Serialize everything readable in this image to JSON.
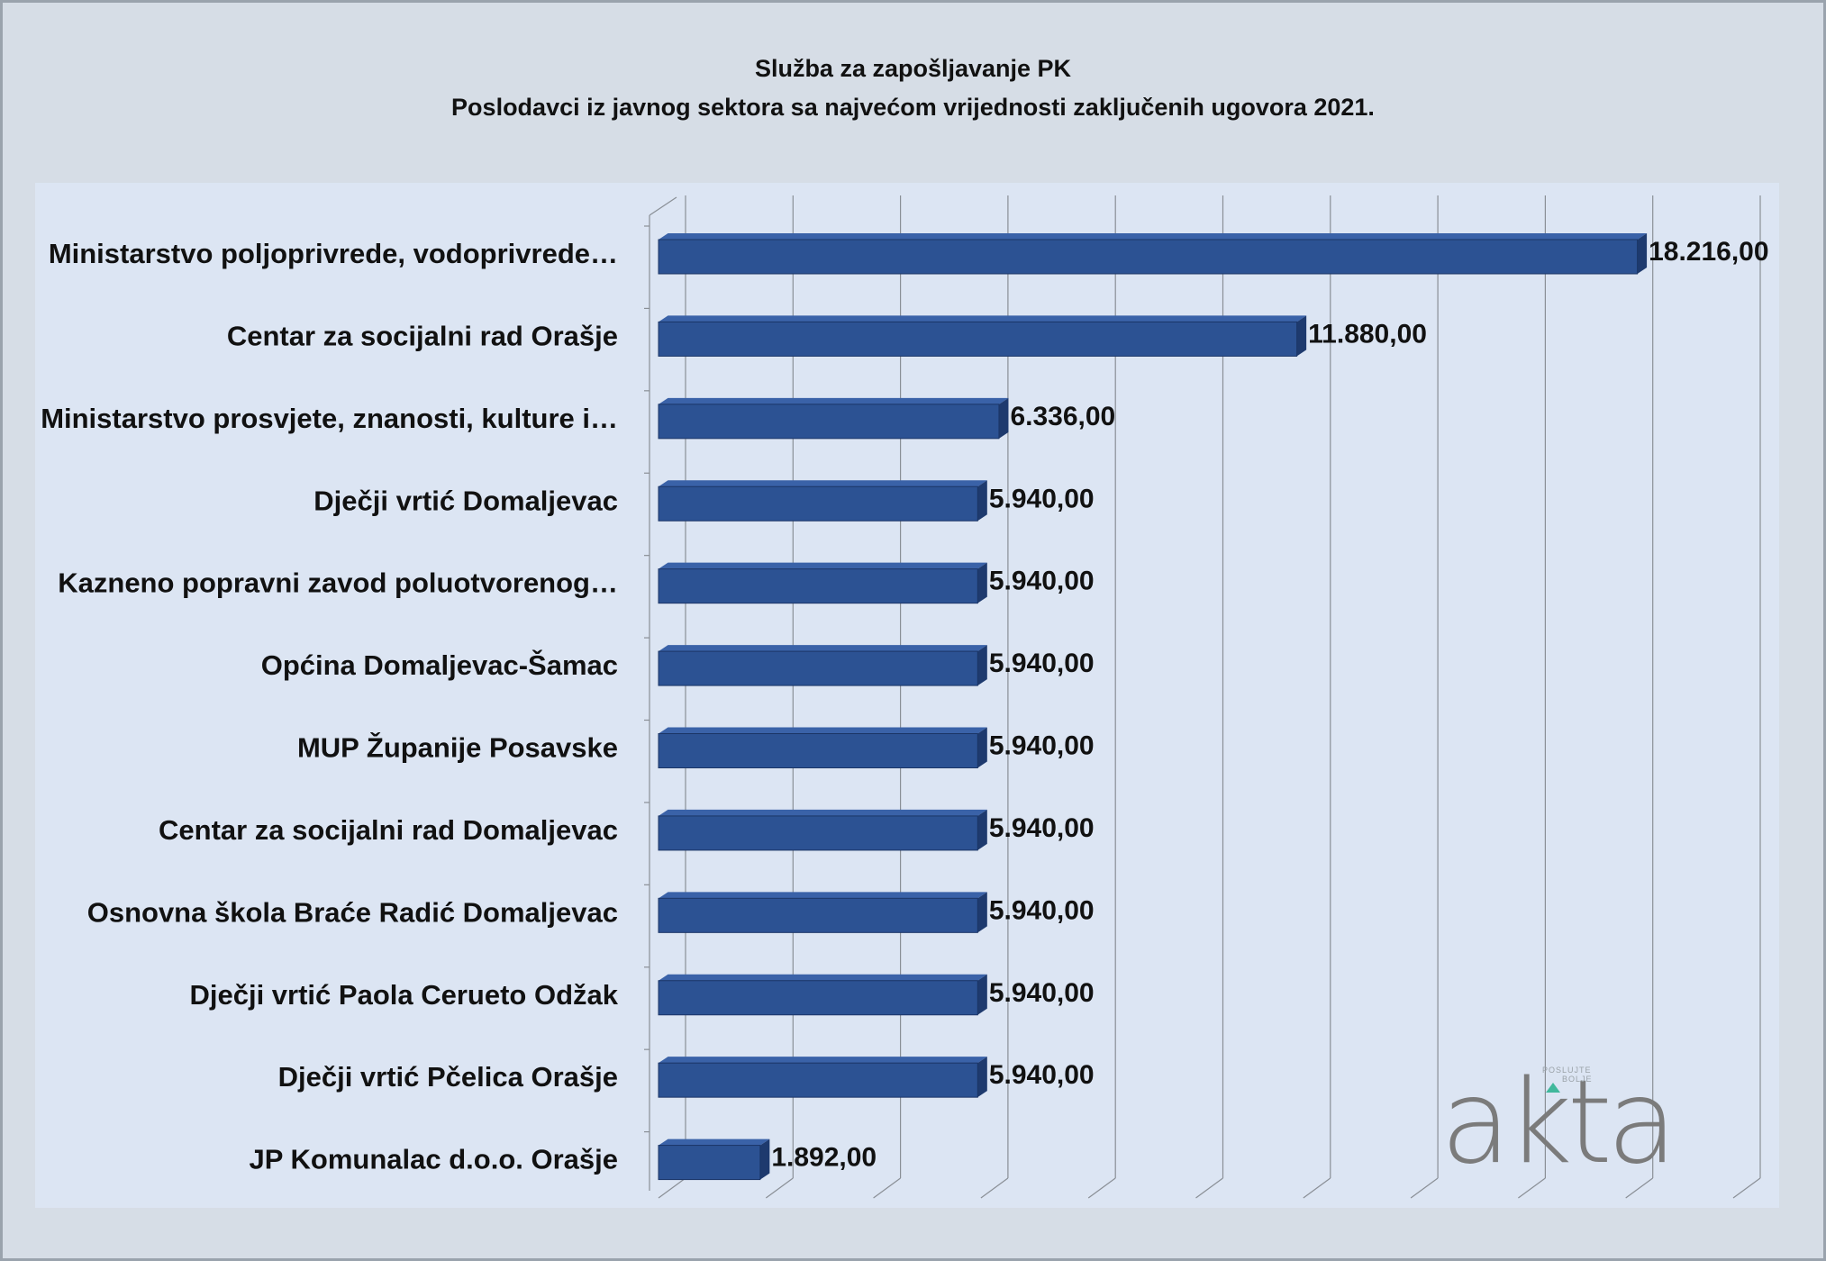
{
  "title_line1": "Služba za zapošljavanje PK",
  "title_line2": "Poslodavci iz javnog sektora sa najvećom vrijednosti zaključenih ugovora 2021.",
  "logo": {
    "text": "akta",
    "tag_line1": "POSLUJTE",
    "tag_line2": "BOLJE",
    "triangle_color": "#40b89c"
  },
  "chart_data": {
    "type": "bar",
    "orientation": "horizontal",
    "three_d": true,
    "title": "Služba za zapošljavanje PK",
    "subtitle": "Poslodavci iz javnog sektora sa najvećom vrijednosti zaključenih ugovora 2021.",
    "xlabel": "",
    "ylabel": "",
    "xlim": [
      0,
      20000
    ],
    "grid_step": 2000,
    "grid": true,
    "legend": "none",
    "bar_color": "#2c5293",
    "categories": [
      "Ministarstvo poljoprivrede, vodoprivrede…",
      "Centar za socijalni rad Orašje",
      "Ministarstvo prosvjete, znanosti, kulture i…",
      "Dječji vrtić Domaljevac",
      "Kazneno popravni zavod poluotvorenog…",
      "Općina Domaljevac-Šamac",
      "MUP Županije Posavske",
      "Centar za socijalni rad Domaljevac",
      "Osnovna škola Braće Radić Domaljevac",
      "Dječji vrtić Paola Cerueto Odžak",
      "Dječji vrtić Pčelica Orašje",
      "JP Komunalac d.o.o. Orašje"
    ],
    "values": [
      18216,
      11880,
      6336,
      5940,
      5940,
      5940,
      5940,
      5940,
      5940,
      5940,
      5940,
      1892
    ],
    "data_labels": [
      "18.216,00",
      "11.880,00",
      "6.336,00",
      "5.940,00",
      "5.940,00",
      "5.940,00",
      "5.940,00",
      "5.940,00",
      "5.940,00",
      "5.940,00",
      "5.940,00",
      "1.892,00"
    ]
  }
}
